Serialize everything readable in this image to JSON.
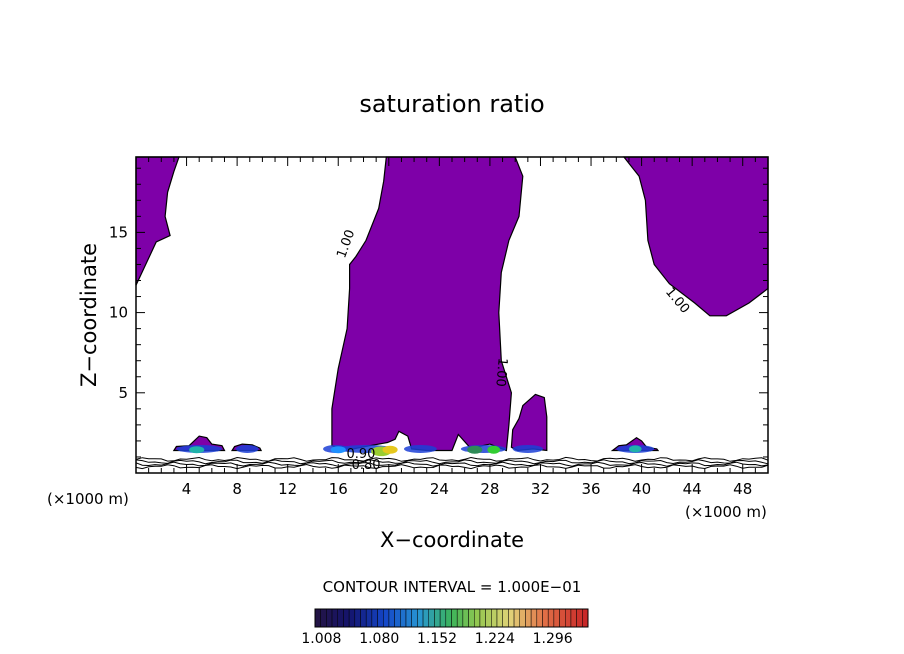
{
  "chart_data": {
    "type": "contour",
    "title": "saturation ratio",
    "xlabel": "X−coordinate",
    "ylabel": "Z−coordinate",
    "x_unit": "(×1000 m)",
    "y_unit": "(×1000 m)",
    "xlim": [
      0,
      50
    ],
    "ylim": [
      0,
      19.7
    ],
    "x_ticks": [
      4,
      8,
      12,
      16,
      20,
      24,
      28,
      32,
      36,
      40,
      44,
      48
    ],
    "x_tick_labels": [
      "4",
      "8",
      "12",
      "16",
      "20",
      "24",
      "28",
      "32",
      "36",
      "40",
      "44",
      "48"
    ],
    "y_ticks": [
      5,
      10,
      15
    ],
    "y_tick_labels": [
      "5",
      "10",
      "15"
    ],
    "contour_interval_text": "CONTOUR INTERVAL = 1.000E−01",
    "contour_labels": [
      "1.00",
      "1.00",
      "1.00",
      "0.90",
      "0.80"
    ],
    "colorbar": {
      "min": 1.0,
      "max": 1.34,
      "tick_values": [
        1.008,
        1.08,
        1.152,
        1.224,
        1.296
      ],
      "tick_labels": [
        "1.008",
        "1.080",
        "1.152",
        "1.224",
        "1.296"
      ]
    },
    "regions": [
      {
        "name": "left-upper-region",
        "color": "#7e00a8",
        "points": [
          [
            0,
            19.7
          ],
          [
            3.4,
            19.7
          ],
          [
            3,
            18.8
          ],
          [
            2.5,
            17.5
          ],
          [
            2.3,
            16
          ],
          [
            2.7,
            14.8
          ],
          [
            1.6,
            14.4
          ],
          [
            0,
            11.7
          ]
        ]
      },
      {
        "name": "central-column-region",
        "color": "#7e00a8",
        "points": [
          [
            19.8,
            19.7
          ],
          [
            30,
            19.7
          ],
          [
            30.6,
            18.5
          ],
          [
            30.3,
            16
          ],
          [
            29.5,
            14.5
          ],
          [
            28.9,
            12.5
          ],
          [
            28.7,
            10
          ],
          [
            28.9,
            7
          ],
          [
            29.7,
            5
          ],
          [
            29.5,
            3
          ],
          [
            29.3,
            1.4
          ],
          [
            28,
            1.8
          ],
          [
            26.8,
            1.6
          ],
          [
            26.4,
            1.6
          ],
          [
            25.5,
            2.4
          ],
          [
            25,
            1.4
          ],
          [
            23,
            1.4
          ],
          [
            21.8,
            1.5
          ],
          [
            21.5,
            2.3
          ],
          [
            20.8,
            2.6
          ],
          [
            20.5,
            2.1
          ],
          [
            19.9,
            1.9
          ],
          [
            18.5,
            1.7
          ],
          [
            17.2,
            1.5
          ],
          [
            16.3,
            1.5
          ],
          [
            15.5,
            1.7
          ],
          [
            15.5,
            4
          ],
          [
            16,
            6.5
          ],
          [
            16.7,
            9
          ],
          [
            16.9,
            11.5
          ],
          [
            16.9,
            13
          ],
          [
            17.4,
            13.5
          ],
          [
            18.2,
            14.5
          ],
          [
            19.2,
            16.5
          ],
          [
            19.6,
            18.2
          ]
        ]
      },
      {
        "name": "small-column-region",
        "color": "#7e00a8",
        "points": [
          [
            29.7,
            1.6
          ],
          [
            29.8,
            2.7
          ],
          [
            30.3,
            3.4
          ],
          [
            30.6,
            4.2
          ],
          [
            31.6,
            4.9
          ],
          [
            32.3,
            4.7
          ],
          [
            32.5,
            3.5
          ],
          [
            32.5,
            1.4
          ],
          [
            31.4,
            1.5
          ],
          [
            30.2,
            1.4
          ]
        ]
      },
      {
        "name": "right-upper-region",
        "color": "#7e00a8",
        "points": [
          [
            38.6,
            19.7
          ],
          [
            50,
            19.7
          ],
          [
            50,
            11.5
          ],
          [
            48.5,
            10.6
          ],
          [
            46.7,
            9.8
          ],
          [
            45.4,
            9.8
          ],
          [
            44.2,
            10.6
          ],
          [
            42.2,
            11.8
          ],
          [
            41,
            13
          ],
          [
            40.5,
            14.5
          ],
          [
            40.3,
            17
          ],
          [
            39.8,
            18.5
          ]
        ]
      },
      {
        "name": "blob-x5-region",
        "color": "#7e00a8",
        "points": [
          [
            3,
            1.4
          ],
          [
            3.2,
            1.65
          ],
          [
            4.2,
            1.7
          ],
          [
            4.6,
            2
          ],
          [
            5,
            2.3
          ],
          [
            5.6,
            2.2
          ],
          [
            6,
            1.8
          ],
          [
            6.8,
            1.7
          ],
          [
            7,
            1.4
          ]
        ]
      },
      {
        "name": "blob-x9-region",
        "color": "#7e00a8",
        "points": [
          [
            7.6,
            1.4
          ],
          [
            7.8,
            1.65
          ],
          [
            8.4,
            1.8
          ],
          [
            9.2,
            1.75
          ],
          [
            9.8,
            1.55
          ],
          [
            9.9,
            1.4
          ]
        ]
      },
      {
        "name": "blob-x40-region",
        "color": "#7e00a8",
        "points": [
          [
            37.7,
            1.4
          ],
          [
            38.2,
            1.7
          ],
          [
            38.8,
            1.75
          ],
          [
            39.6,
            2.2
          ],
          [
            40,
            2
          ],
          [
            40.4,
            1.6
          ],
          [
            41.2,
            1.5
          ],
          [
            41.3,
            1.4
          ]
        ]
      }
    ],
    "hotspots": [
      {
        "name": "hotspot-x19",
        "x": 19.4,
        "y": 1.35,
        "rx": 0.8,
        "ry": 0.3,
        "color": "#9acd32"
      },
      {
        "name": "hotspot-x20",
        "x": 20.1,
        "y": 1.45,
        "rx": 0.6,
        "ry": 0.25,
        "color": "#e6c81e"
      },
      {
        "name": "hotspot-x27",
        "x": 26.8,
        "y": 1.45,
        "rx": 0.6,
        "ry": 0.25,
        "color": "#2e8b57"
      },
      {
        "name": "hotspot-x28",
        "x": 28.3,
        "y": 1.45,
        "rx": 0.5,
        "ry": 0.25,
        "color": "#32cd32"
      },
      {
        "name": "hotspot-x5",
        "x": 4.8,
        "y": 1.45,
        "rx": 0.6,
        "ry": 0.22,
        "color": "#20b2aa"
      },
      {
        "name": "hotspot-x16",
        "x": 16.0,
        "y": 1.45,
        "rx": 0.6,
        "ry": 0.22,
        "color": "#1e90ff"
      },
      {
        "name": "hotspot-x40",
        "x": 39.5,
        "y": 1.5,
        "rx": 0.5,
        "ry": 0.22,
        "color": "#20b2aa"
      }
    ]
  }
}
